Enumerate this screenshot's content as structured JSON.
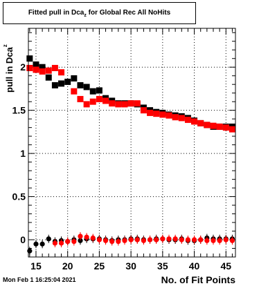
{
  "title": {
    "prefix": "Fitted pull in Dca",
    "sub": "z",
    "suffix": " for Global Rec All NoHits"
  },
  "footer": {
    "timestamp": "Mon Feb  1 16:25:04 2021"
  },
  "chart_data": {
    "type": "scatter",
    "title": "Fitted pull in Dca_z for Global Rec All NoHits",
    "xlabel": "No. of Fit Points",
    "ylabel": "pull in Dca",
    "ylabel_sub": "z",
    "xlim": [
      13.8,
      46.5
    ],
    "ylim": [
      -0.2,
      2.45
    ],
    "xticks": [
      15,
      20,
      25,
      30,
      35,
      40,
      45
    ],
    "yticks": [
      0,
      0.5,
      1,
      1.5,
      2
    ],
    "ytick_labels": [
      "0",
      "0.5",
      "1",
      "1.5",
      "2"
    ],
    "grid": true,
    "series": [
      {
        "color": "#000000",
        "points": [
          [
            14,
            2.1
          ],
          [
            15,
            2.03
          ],
          [
            16,
            2.0
          ],
          [
            17,
            1.88
          ],
          [
            18,
            1.79
          ],
          [
            19,
            1.81
          ],
          [
            20,
            1.83
          ],
          [
            21,
            1.87
          ],
          [
            22,
            1.79
          ],
          [
            23,
            1.77
          ],
          [
            24,
            1.72
          ],
          [
            25,
            1.73
          ],
          [
            26,
            1.64
          ],
          [
            27,
            1.61
          ],
          [
            28,
            1.58
          ],
          [
            29,
            1.58
          ],
          [
            30,
            1.58
          ],
          [
            31,
            1.57
          ],
          [
            32,
            1.53
          ],
          [
            33,
            1.5
          ],
          [
            34,
            1.48
          ],
          [
            35,
            1.47
          ],
          [
            36,
            1.45
          ],
          [
            37,
            1.44
          ],
          [
            38,
            1.43
          ],
          [
            39,
            1.41
          ],
          [
            40,
            1.38
          ],
          [
            41,
            1.35
          ],
          [
            42,
            1.33
          ],
          [
            43,
            1.31
          ],
          [
            44,
            1.31
          ],
          [
            45,
            1.31
          ],
          [
            46,
            1.31
          ]
        ],
        "points_low": [
          [
            14,
            -0.13
          ],
          [
            15,
            -0.05
          ],
          [
            16,
            -0.05
          ],
          [
            17,
            0.01
          ],
          [
            18,
            -0.02
          ],
          [
            19,
            -0.01
          ],
          [
            20,
            -0.02
          ],
          [
            21,
            0.0
          ],
          [
            22,
            -0.01
          ],
          [
            23,
            0.01
          ],
          [
            24,
            0.01
          ],
          [
            25,
            0.01
          ],
          [
            26,
            0.0
          ],
          [
            27,
            -0.01
          ],
          [
            28,
            0.0
          ],
          [
            29,
            0.0
          ],
          [
            30,
            0.01
          ],
          [
            31,
            0.01
          ],
          [
            32,
            0.0
          ],
          [
            33,
            0.0
          ],
          [
            34,
            0.01
          ],
          [
            35,
            0.01
          ],
          [
            36,
            0.0
          ],
          [
            37,
            0.0
          ],
          [
            38,
            0.01
          ],
          [
            39,
            -0.01
          ],
          [
            40,
            -0.01
          ],
          [
            41,
            0.0
          ],
          [
            42,
            0.02
          ],
          [
            43,
            0.01
          ],
          [
            44,
            0.01
          ],
          [
            45,
            0.01
          ],
          [
            46,
            0.01
          ]
        ]
      },
      {
        "color": "#ff0000",
        "points": [
          [
            14,
            1.99
          ],
          [
            15,
            1.97
          ],
          [
            16,
            1.95
          ],
          [
            17,
            1.96
          ],
          [
            18,
            1.99
          ],
          [
            19,
            1.94
          ],
          [
            21,
            1.72
          ],
          [
            22,
            1.63
          ],
          [
            23,
            1.57
          ],
          [
            24,
            1.6
          ],
          [
            25,
            1.63
          ],
          [
            26,
            1.61
          ],
          [
            27,
            1.58
          ],
          [
            28,
            1.57
          ],
          [
            29,
            1.57
          ],
          [
            30,
            1.58
          ],
          [
            31,
            1.58
          ],
          [
            32,
            1.5
          ],
          [
            33,
            1.47
          ],
          [
            34,
            1.46
          ],
          [
            35,
            1.45
          ],
          [
            36,
            1.44
          ],
          [
            37,
            1.42
          ],
          [
            38,
            1.41
          ],
          [
            39,
            1.39
          ],
          [
            40,
            1.37
          ],
          [
            41,
            1.35
          ],
          [
            42,
            1.33
          ],
          [
            43,
            1.32
          ],
          [
            44,
            1.31
          ],
          [
            45,
            1.3
          ],
          [
            46,
            1.28
          ]
        ],
        "points_low": [
          [
            18,
            -0.04
          ],
          [
            19,
            -0.04
          ],
          [
            20,
            -0.02
          ],
          [
            21,
            -0.02
          ],
          [
            22,
            0.04
          ],
          [
            23,
            0.03
          ],
          [
            24,
            0.02
          ],
          [
            25,
            0.0
          ],
          [
            26,
            -0.01
          ],
          [
            27,
            -0.02
          ],
          [
            28,
            -0.02
          ],
          [
            29,
            -0.01
          ],
          [
            30,
            0.0
          ],
          [
            31,
            0.0
          ],
          [
            32,
            -0.01
          ],
          [
            33,
            0.0
          ],
          [
            34,
            0.0
          ],
          [
            35,
            0.01
          ],
          [
            36,
            0.01
          ],
          [
            37,
            0.01
          ],
          [
            38,
            0.0
          ],
          [
            39,
            0.0
          ],
          [
            40,
            0.0
          ],
          [
            41,
            0.0
          ],
          [
            42,
            -0.01
          ],
          [
            43,
            -0.01
          ],
          [
            44,
            -0.01
          ],
          [
            45,
            0.0
          ],
          [
            46,
            -0.01
          ]
        ]
      }
    ]
  }
}
